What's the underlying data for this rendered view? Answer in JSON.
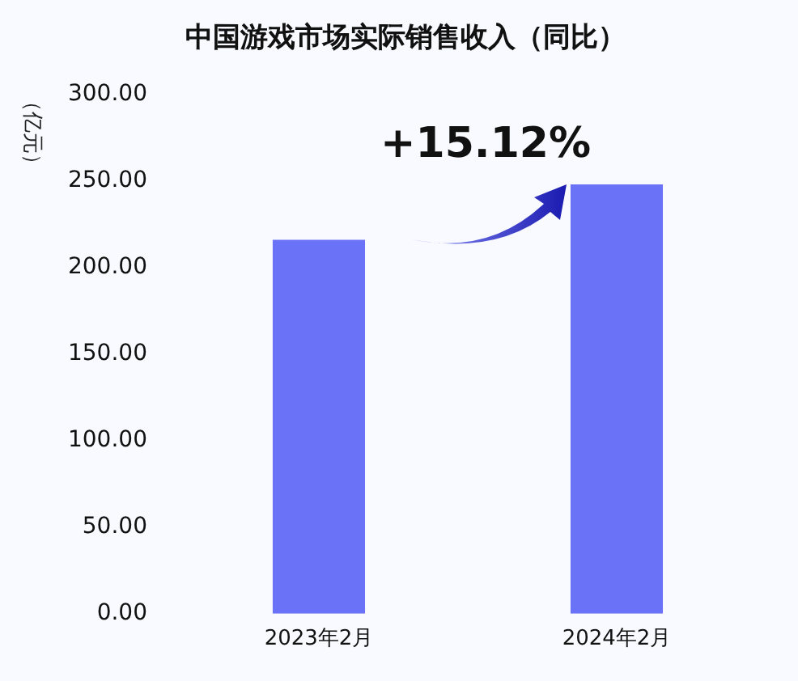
{
  "chart_data": {
    "type": "bar",
    "title": "中国游戏市场实际销售收入（同比）",
    "ylabel": "（亿元）",
    "categories": [
      "2023年2月",
      "2024年2月"
    ],
    "values": [
      216,
      248
    ],
    "color": "#6a72f8",
    "ylim": [
      0,
      300
    ],
    "yticks": [
      {
        "value": 0,
        "label": "0.00"
      },
      {
        "value": 50,
        "label": "50.00"
      },
      {
        "value": 100,
        "label": "100.00"
      },
      {
        "value": 150,
        "label": "150.00"
      },
      {
        "value": 200,
        "label": "200.00"
      },
      {
        "value": 250,
        "label": "250.00"
      },
      {
        "value": 300,
        "label": "300.00"
      }
    ],
    "grid": false,
    "legend": false,
    "annotations": [
      "+15.12%"
    ]
  }
}
